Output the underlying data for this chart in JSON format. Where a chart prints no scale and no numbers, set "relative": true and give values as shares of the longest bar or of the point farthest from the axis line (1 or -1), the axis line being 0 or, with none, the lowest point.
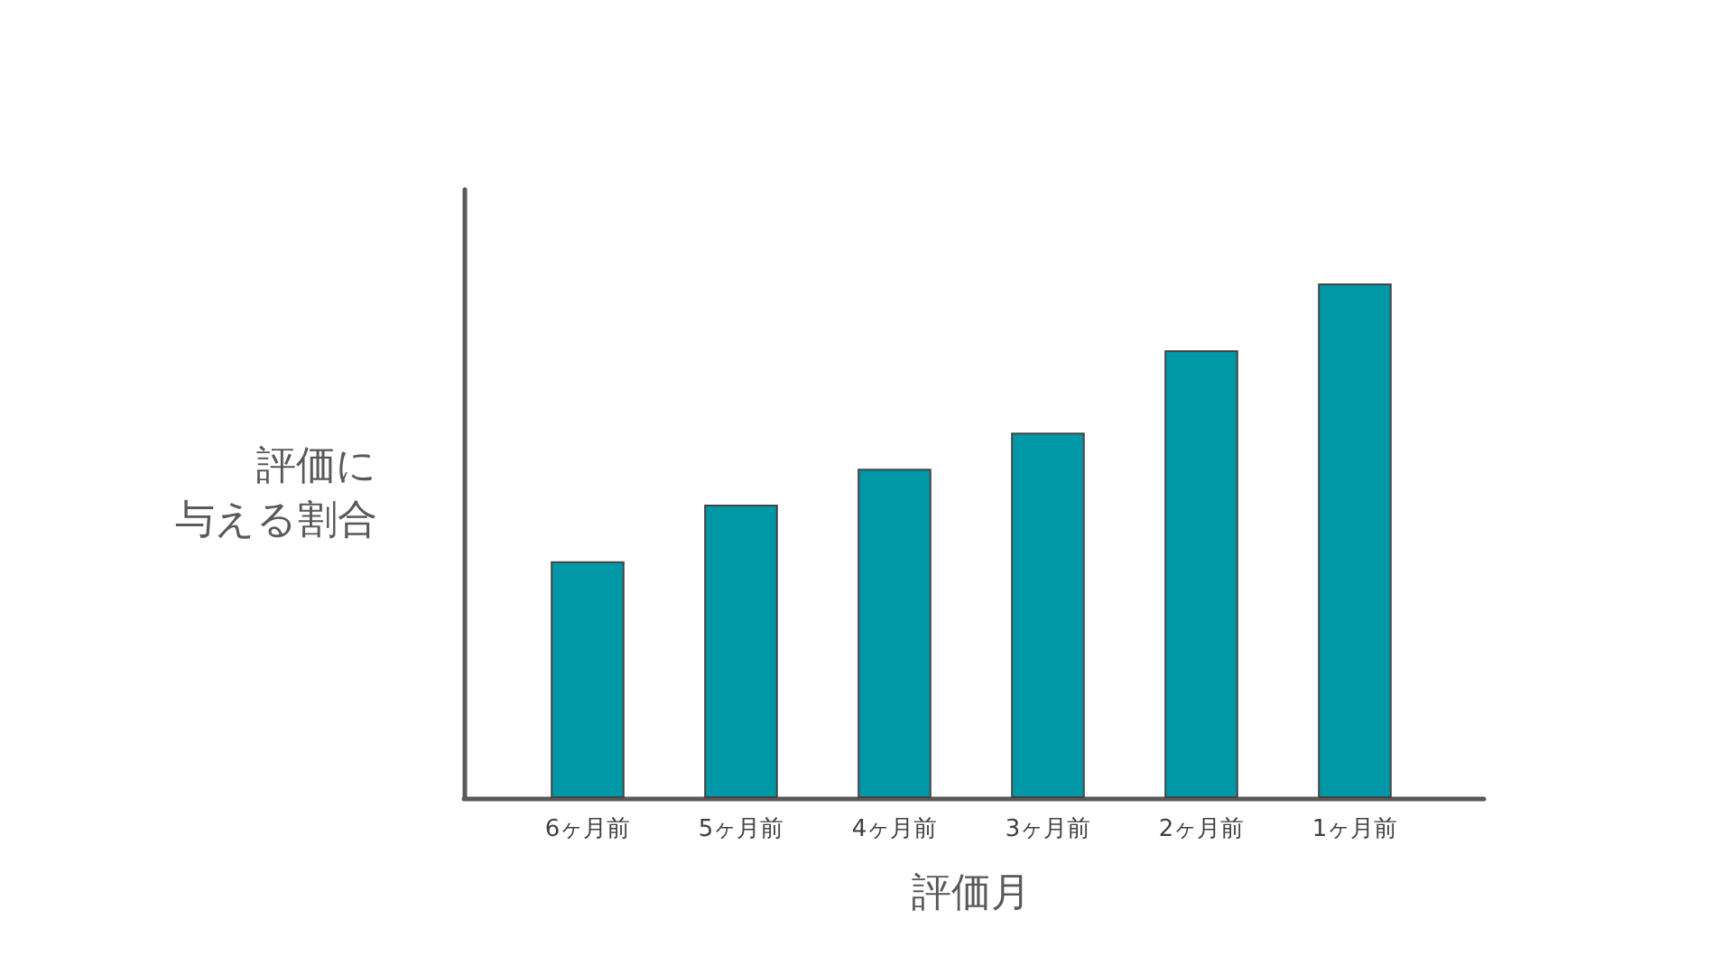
{
  "chart_data": {
    "type": "bar",
    "relative": true,
    "categories": [
      "6ヶ月前",
      "5ヶ月前",
      "4ヶ月前",
      "3ヶ月前",
      "2ヶ月前",
      "1ヶ月前"
    ],
    "values": [
      0.46,
      0.57,
      0.64,
      0.71,
      0.87,
      1
    ],
    "color": "#0097a7",
    "xlabel": "評価月",
    "ylabel": "評価に与える割合"
  }
}
